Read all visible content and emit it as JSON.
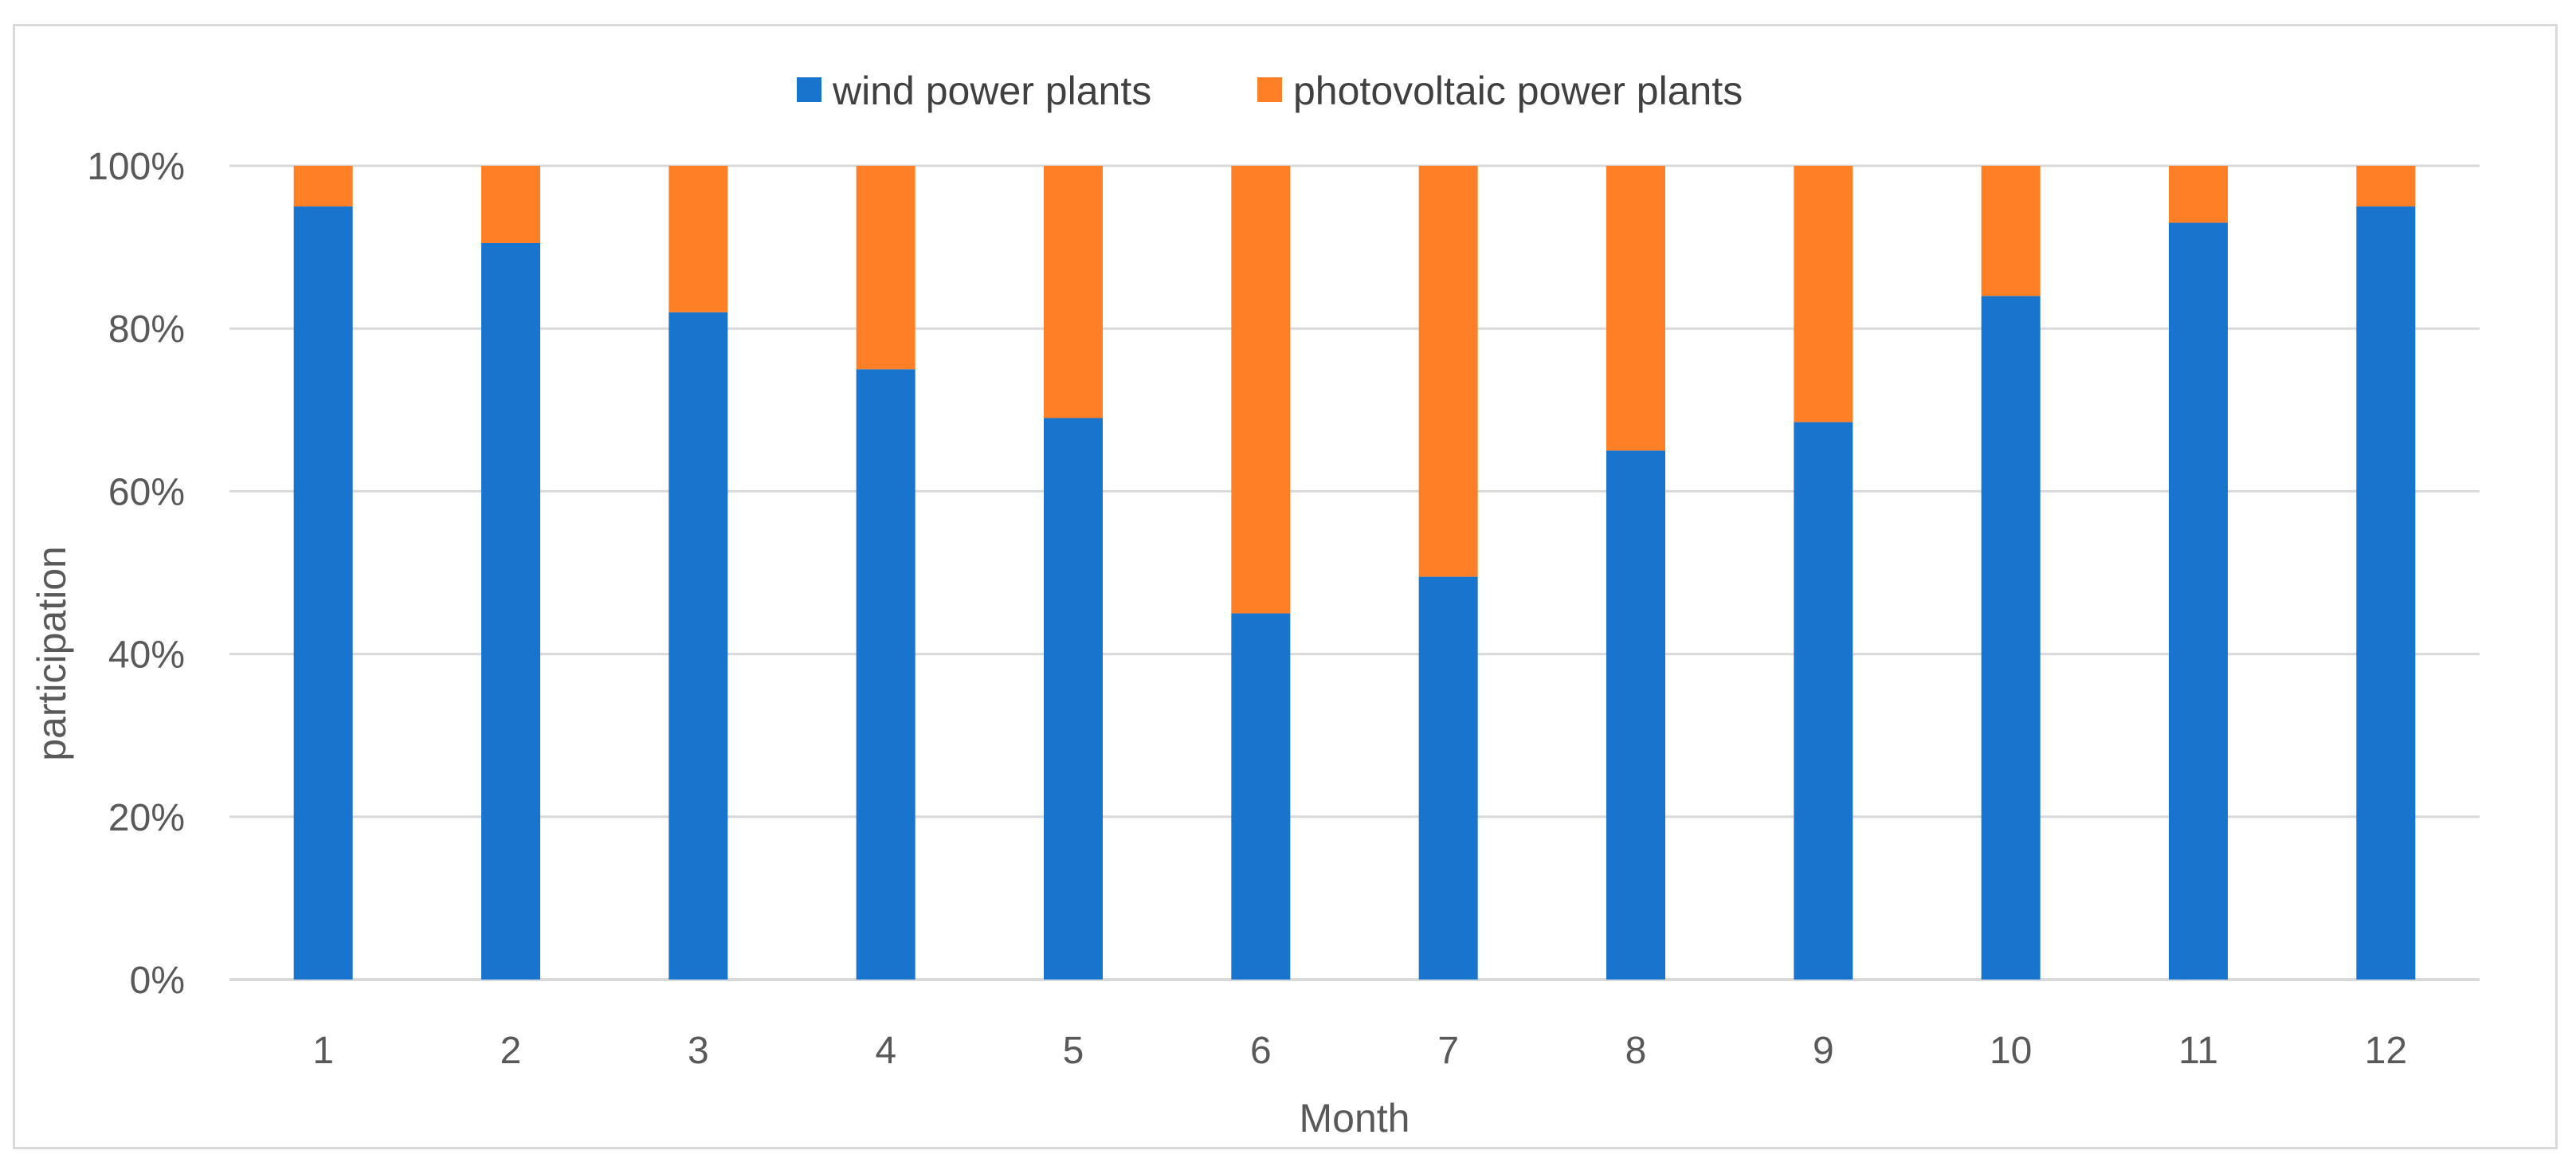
{
  "chart_data": {
    "type": "bar",
    "stacked": true,
    "percent_stacked": true,
    "title": "",
    "xlabel": "Month",
    "ylabel": "participation",
    "categories": [
      "1",
      "2",
      "3",
      "4",
      "5",
      "6",
      "7",
      "8",
      "9",
      "10",
      "11",
      "12"
    ],
    "series": [
      {
        "name": "wind power plants",
        "color": "#1874CD",
        "values": [
          95,
          90.5,
          82,
          75,
          69,
          45,
          49.5,
          65,
          68.5,
          84,
          93,
          95
        ]
      },
      {
        "name": "photovoltaic power plants",
        "color": "#FF7F27",
        "values": [
          5,
          9.5,
          18,
          25,
          31,
          55,
          50.5,
          35,
          31.5,
          16,
          7,
          5
        ]
      }
    ],
    "ylim": [
      0,
      100
    ],
    "yticks": [
      "0%",
      "20%",
      "40%",
      "60%",
      "80%",
      "100%"
    ],
    "ytick_values": [
      0,
      20,
      40,
      60,
      80,
      100
    ],
    "grid": true,
    "legend_position": "top-center",
    "gridline_color": "#d9d9d9"
  }
}
